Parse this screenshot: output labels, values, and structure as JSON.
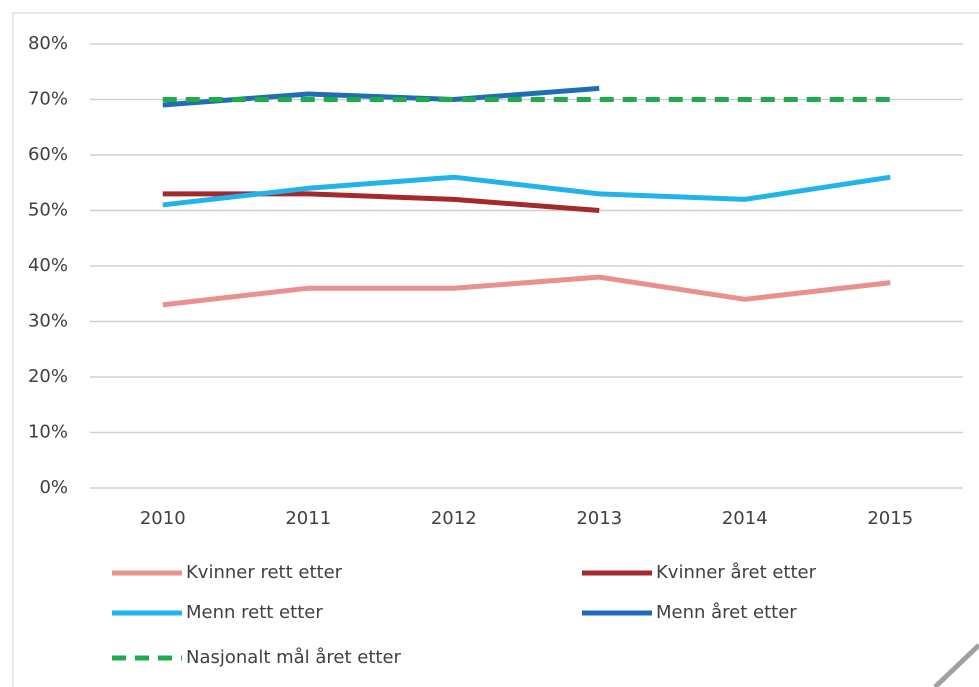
{
  "chart_data": {
    "type": "line",
    "categories": [
      "2010",
      "2011",
      "2012",
      "2013",
      "2014",
      "2015"
    ],
    "series": [
      {
        "name": "Kvinner rett etter",
        "color": "#e8918f",
        "values": [
          33,
          36,
          36,
          38,
          34,
          37
        ]
      },
      {
        "name": "Kvinner året etter",
        "color": "#a3292b",
        "values": [
          53,
          53,
          52,
          50,
          null,
          null
        ]
      },
      {
        "name": "Menn rett etter",
        "color": "#21b4ea",
        "values": [
          51,
          54,
          56,
          53,
          52,
          56
        ]
      },
      {
        "name": "Menn året etter",
        "color": "#1f6db6",
        "values": [
          69,
          71,
          70,
          72,
          null,
          null
        ]
      },
      {
        "name": "Nasjonalt mål året etter",
        "color": "#1faa4b",
        "line_style": "dashed",
        "values": [
          70,
          70,
          70,
          70,
          70,
          70
        ]
      }
    ],
    "ylim": [
      0,
      80
    ],
    "yticks": [
      {
        "value": 0,
        "label": "0%"
      },
      {
        "value": 10,
        "label": "10%"
      },
      {
        "value": 20,
        "label": "20%"
      },
      {
        "value": 30,
        "label": "30%"
      },
      {
        "value": 40,
        "label": "40%"
      },
      {
        "value": 50,
        "label": "50%"
      },
      {
        "value": 60,
        "label": "60%"
      },
      {
        "value": 70,
        "label": "70%"
      },
      {
        "value": 80,
        "label": "80%"
      }
    ],
    "grid": true,
    "legend": "bottom"
  }
}
